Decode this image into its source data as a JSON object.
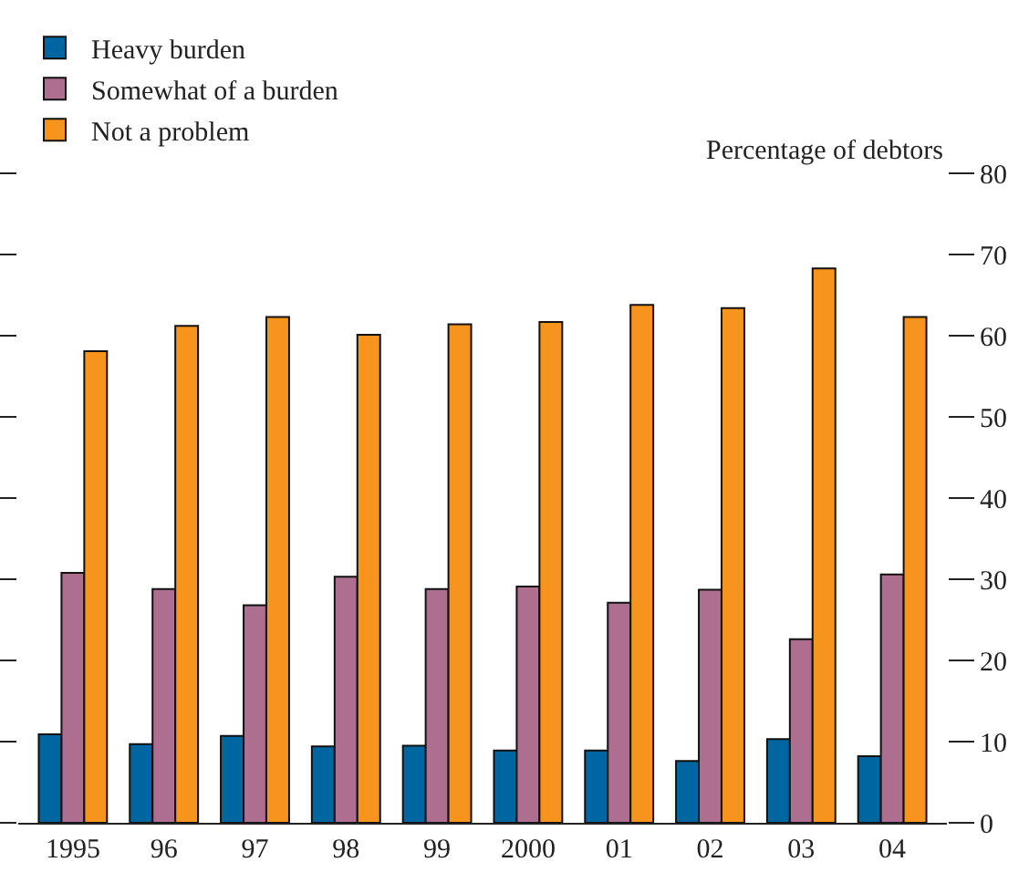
{
  "chart_data": {
    "type": "bar",
    "ylabel": "Percentage of debtors",
    "categories": [
      "1995",
      "96",
      "97",
      "98",
      "99",
      "2000",
      "01",
      "02",
      "03",
      "04"
    ],
    "series": [
      {
        "name": "Heavy burden",
        "color": "#0066a1",
        "values": [
          10.9,
          9.7,
          10.7,
          9.4,
          9.5,
          8.9,
          8.9,
          7.6,
          10.3,
          8.2
        ]
      },
      {
        "name": "Somewhat of a burden",
        "color": "#ad6e8f",
        "values": [
          30.8,
          28.8,
          26.8,
          30.3,
          28.8,
          29.1,
          27.1,
          28.7,
          22.6,
          30.6
        ]
      },
      {
        "name": "Not a problem",
        "color": "#f7941e",
        "values": [
          58.1,
          61.2,
          62.3,
          60.1,
          61.4,
          61.7,
          63.8,
          63.4,
          68.3,
          62.3
        ]
      }
    ],
    "ylim": [
      0,
      80
    ],
    "yticks": [
      0,
      10,
      20,
      30,
      40,
      50,
      60,
      70,
      80
    ],
    "legend": "top left"
  }
}
